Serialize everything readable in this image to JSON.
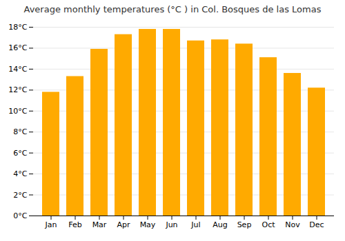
{
  "chart_data": {
    "type": "bar",
    "title": "Average monthly temperatures (°C ) in Col. Bosques de las Lomas",
    "categories": [
      "Jan",
      "Feb",
      "Mar",
      "Apr",
      "May",
      "Jun",
      "Jul",
      "Aug",
      "Sep",
      "Oct",
      "Nov",
      "Dec"
    ],
    "values": [
      11.8,
      13.3,
      15.9,
      17.3,
      17.8,
      17.8,
      16.7,
      16.8,
      16.4,
      15.1,
      13.6,
      12.2
    ],
    "color": "#FFAA00",
    "ylim": [
      0,
      18
    ],
    "yticks": [
      {
        "value": 0,
        "label": "0°C"
      },
      {
        "value": 2,
        "label": "2°C"
      },
      {
        "value": 4,
        "label": "4°C"
      },
      {
        "value": 6,
        "label": "6°C"
      },
      {
        "value": 8,
        "label": "8°C"
      },
      {
        "value": 10,
        "label": "10°C"
      },
      {
        "value": 12,
        "label": "12°C"
      },
      {
        "value": 14,
        "label": "14°C"
      },
      {
        "value": 16,
        "label": "16°C"
      },
      {
        "value": 18,
        "label": "18°C"
      }
    ],
    "grid": true
  }
}
